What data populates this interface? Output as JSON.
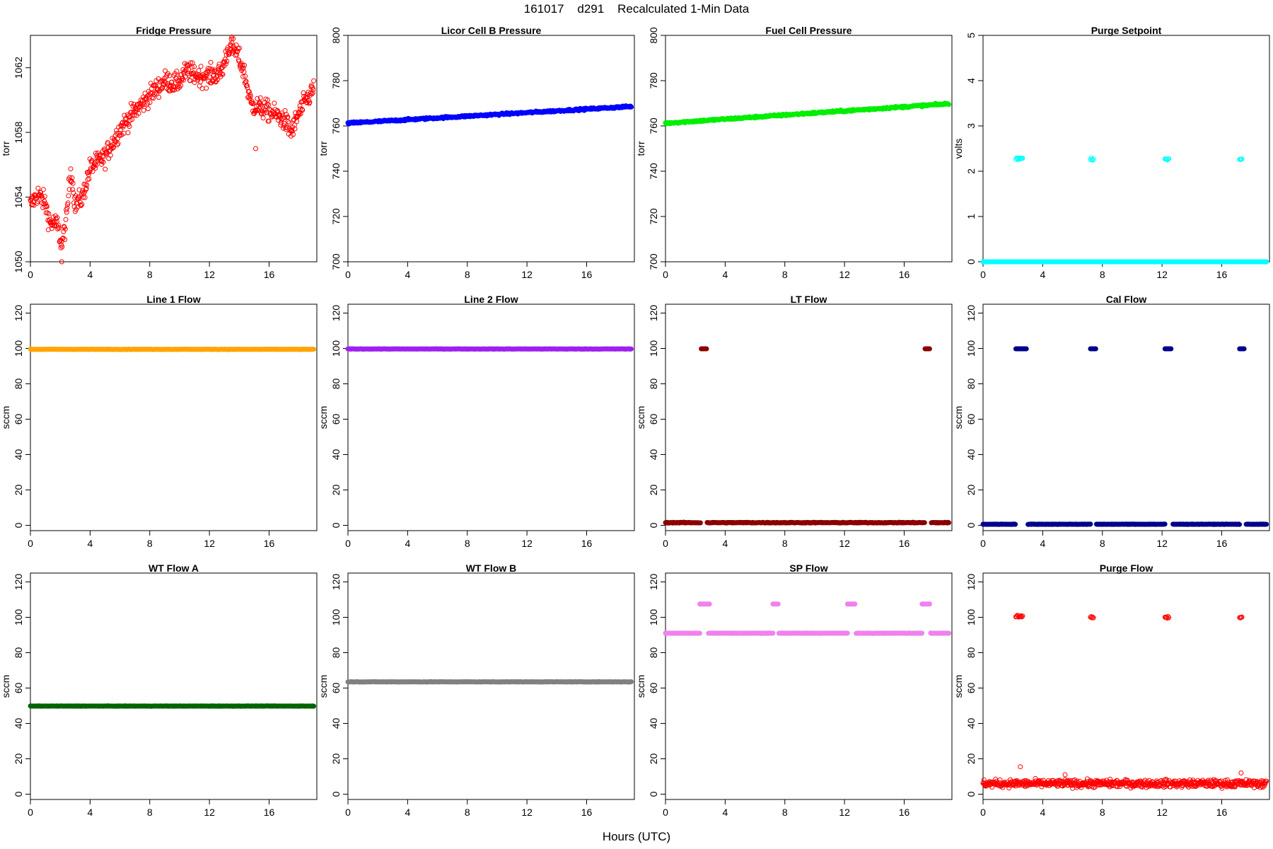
{
  "figure": {
    "title": "161017    d291    Recalculated 1-Min Data",
    "xlabel": "Hours (UTC)"
  },
  "chart_data": [
    {
      "type": "scatter",
      "title": "Fridge Pressure",
      "ylabel": "torr",
      "xlim": [
        0,
        19.2
      ],
      "ylim": [
        1050,
        1064
      ],
      "xticks": [
        0,
        4,
        8,
        12,
        16
      ],
      "yticks": [
        1050,
        1054,
        1058,
        1062
      ],
      "color": "#ff0000",
      "marker": "open-circle",
      "trace": [
        [
          0,
          1053.5
        ],
        [
          0.5,
          1054.2
        ],
        [
          1,
          1053.6
        ],
        [
          1.3,
          1052.4
        ],
        [
          1.8,
          1052.3
        ],
        [
          2.1,
          1051.0
        ],
        [
          2.4,
          1052.5
        ],
        [
          2.7,
          1055.8
        ],
        [
          3,
          1053.5
        ],
        [
          3.5,
          1054.0
        ],
        [
          4,
          1055.8
        ],
        [
          5,
          1056.5
        ],
        [
          6,
          1058.2
        ],
        [
          7,
          1059.3
        ],
        [
          8,
          1060.3
        ],
        [
          9,
          1061.2
        ],
        [
          9.8,
          1061.0
        ],
        [
          10.5,
          1061.8
        ],
        [
          11.2,
          1061.5
        ],
        [
          12,
          1061.5
        ],
        [
          12.8,
          1061.7
        ],
        [
          13.3,
          1063.3
        ],
        [
          13.8,
          1063.0
        ],
        [
          14.3,
          1061.8
        ],
        [
          14.8,
          1059.7
        ],
        [
          15.5,
          1059.5
        ],
        [
          16,
          1059.3
        ],
        [
          17,
          1058.8
        ],
        [
          17.5,
          1058.0
        ],
        [
          18,
          1059.2
        ],
        [
          18.5,
          1060.0
        ],
        [
          19,
          1060.7
        ]
      ],
      "noise": 0.6,
      "spikes": [
        [
          15.1,
          1057.0
        ],
        [
          2.1,
          1050.0
        ],
        [
          13.5,
          1063.9
        ]
      ]
    },
    {
      "type": "scatter",
      "title": "Licor Cell B Pressure",
      "ylabel": "torr",
      "xlim": [
        0,
        19.2
      ],
      "ylim": [
        700,
        800
      ],
      "xticks": [
        0,
        4,
        8,
        12,
        16
      ],
      "yticks": [
        700,
        720,
        740,
        760,
        780,
        800
      ],
      "color": "#0000ff",
      "marker": "filled-circle",
      "trace": [
        [
          0,
          761.2
        ],
        [
          19,
          768.6
        ]
      ],
      "noise": 0.4
    },
    {
      "type": "scatter",
      "title": "Fuel Cell Pressure",
      "ylabel": "torr",
      "xlim": [
        0,
        19.2
      ],
      "ylim": [
        700,
        800
      ],
      "xticks": [
        0,
        4,
        8,
        12,
        16
      ],
      "yticks": [
        700,
        720,
        740,
        760,
        780,
        800
      ],
      "color": "#00ee00",
      "marker": "filled-circle",
      "trace": [
        [
          0,
          761.2
        ],
        [
          19,
          769.8
        ]
      ],
      "noise": 0.4
    },
    {
      "type": "scatter",
      "title": "Purge Setpoint",
      "ylabel": "volts",
      "xlim": [
        0,
        19.2
      ],
      "ylim": [
        0,
        5
      ],
      "xticks": [
        0,
        4,
        8,
        12,
        16
      ],
      "yticks": [
        0,
        1,
        2,
        3,
        4,
        5
      ],
      "color": "#00ffff",
      "marker": "filled-circle",
      "trace": [
        [
          0,
          0
        ],
        [
          19,
          0
        ]
      ],
      "noise": 0,
      "bursts": [
        {
          "x0": 2.2,
          "x1": 2.65,
          "y": 2.28
        },
        {
          "x0": 7.2,
          "x1": 7.4,
          "y": 2.27
        },
        {
          "x0": 12.2,
          "x1": 12.5,
          "y": 2.27
        },
        {
          "x0": 17.2,
          "x1": 17.4,
          "y": 2.27
        }
      ],
      "burst_marker": "open-circle"
    },
    {
      "type": "scatter",
      "title": "Line 1 Flow",
      "ylabel": "sccm",
      "xlim": [
        0,
        19.2
      ],
      "ylim": [
        -3,
        125
      ],
      "xticks": [
        0,
        4,
        8,
        12,
        16
      ],
      "yticks": [
        0,
        20,
        40,
        60,
        80,
        100,
        120
      ],
      "color": "#ffa500",
      "marker": "filled-circle",
      "trace": [
        [
          0,
          99.5
        ],
        [
          19,
          99.5
        ]
      ],
      "noise": 0.1
    },
    {
      "type": "scatter",
      "title": "Line 2 Flow",
      "ylabel": "sccm",
      "xlim": [
        0,
        19.2
      ],
      "ylim": [
        -3,
        125
      ],
      "xticks": [
        0,
        4,
        8,
        12,
        16
      ],
      "yticks": [
        0,
        20,
        40,
        60,
        80,
        100,
        120
      ],
      "color": "#a020f0",
      "marker": "filled-circle",
      "trace": [
        [
          0,
          99.7
        ],
        [
          19,
          99.7
        ]
      ],
      "noise": 0.1
    },
    {
      "type": "scatter",
      "title": "LT Flow",
      "ylabel": "sccm",
      "xlim": [
        0,
        19.2
      ],
      "ylim": [
        -3,
        125
      ],
      "xticks": [
        0,
        4,
        8,
        12,
        16
      ],
      "yticks": [
        0,
        20,
        40,
        60,
        80,
        100,
        120
      ],
      "color": "#8b0000",
      "marker": "filled-circle",
      "trace": [
        [
          0,
          1.5
        ],
        [
          19,
          1.5
        ]
      ],
      "noise": 0.2,
      "gaps": [
        [
          2.35,
          2.75
        ],
        [
          17.4,
          17.8
        ]
      ],
      "bursts": [
        {
          "x0": 2.4,
          "x1": 2.75,
          "y": 99.8
        },
        {
          "x0": 17.4,
          "x1": 17.75,
          "y": 99.8
        }
      ]
    },
    {
      "type": "scatter",
      "title": "Cal Flow",
      "ylabel": "sccm",
      "xlim": [
        0,
        19.2
      ],
      "ylim": [
        -3,
        125
      ],
      "xticks": [
        0,
        4,
        8,
        12,
        16
      ],
      "yticks": [
        0,
        20,
        40,
        60,
        80,
        100,
        120
      ],
      "color": "#00008b",
      "marker": "filled-circle",
      "trace": [
        [
          0,
          0.6
        ],
        [
          19,
          0.6
        ]
      ],
      "noise": 0.1,
      "gaps": [
        [
          2.2,
          3.0
        ],
        [
          7.2,
          7.6
        ],
        [
          12.2,
          12.7
        ],
        [
          17.2,
          17.6
        ]
      ],
      "bursts": [
        {
          "x0": 2.2,
          "x1": 2.9,
          "y": 99.8
        },
        {
          "x0": 7.2,
          "x1": 7.55,
          "y": 99.8
        },
        {
          "x0": 12.2,
          "x1": 12.65,
          "y": 99.8
        },
        {
          "x0": 17.2,
          "x1": 17.55,
          "y": 99.8
        }
      ]
    },
    {
      "type": "scatter",
      "title": "WT Flow A",
      "ylabel": "sccm",
      "xlim": [
        0,
        19.2
      ],
      "ylim": [
        -3,
        125
      ],
      "xticks": [
        0,
        4,
        8,
        12,
        16
      ],
      "yticks": [
        0,
        20,
        40,
        60,
        80,
        100,
        120
      ],
      "color": "#006400",
      "marker": "filled-circle",
      "trace": [
        [
          0,
          49.8
        ],
        [
          19,
          49.8
        ]
      ],
      "noise": 0.1
    },
    {
      "type": "scatter",
      "title": "WT Flow B",
      "ylabel": "sccm",
      "xlim": [
        0,
        19.2
      ],
      "ylim": [
        -3,
        125
      ],
      "xticks": [
        0,
        4,
        8,
        12,
        16
      ],
      "yticks": [
        0,
        20,
        40,
        60,
        80,
        100,
        120
      ],
      "color": "#808080",
      "marker": "filled-circle",
      "trace": [
        [
          0,
          63.5
        ],
        [
          19,
          63.5
        ]
      ],
      "noise": 0.1
    },
    {
      "type": "scatter",
      "title": "SP Flow",
      "ylabel": "sccm",
      "xlim": [
        0,
        19.2
      ],
      "ylim": [
        -3,
        125
      ],
      "xticks": [
        0,
        4,
        8,
        12,
        16
      ],
      "yticks": [
        0,
        20,
        40,
        60,
        80,
        100,
        120
      ],
      "color": "#ee82ee",
      "marker": "filled-circle",
      "trace": [
        [
          0,
          91.0
        ],
        [
          19,
          91.0
        ]
      ],
      "noise": 0.1,
      "gaps": [
        [
          2.3,
          2.85
        ],
        [
          7.2,
          7.6
        ],
        [
          12.2,
          12.75
        ],
        [
          17.2,
          17.75
        ]
      ],
      "bursts": [
        {
          "x0": 2.3,
          "x1": 2.95,
          "y": 107.5
        },
        {
          "x0": 7.2,
          "x1": 7.55,
          "y": 107.5
        },
        {
          "x0": 12.2,
          "x1": 12.75,
          "y": 107.5
        },
        {
          "x0": 17.2,
          "x1": 17.75,
          "y": 107.5
        }
      ]
    },
    {
      "type": "scatter",
      "title": "Purge Flow",
      "ylabel": "sccm",
      "xlim": [
        0,
        19.2
      ],
      "ylim": [
        -3,
        125
      ],
      "xticks": [
        0,
        4,
        8,
        12,
        16
      ],
      "yticks": [
        0,
        20,
        40,
        60,
        80,
        100,
        120
      ],
      "color": "#ff0000",
      "marker": "open-circle",
      "trace": [
        [
          0,
          6
        ],
        [
          19,
          6
        ]
      ],
      "noise": 2.0,
      "spikes": [
        [
          2.5,
          15.5
        ],
        [
          17.3,
          12.0
        ],
        [
          5.5,
          11.0
        ]
      ],
      "bursts": [
        {
          "x0": 2.2,
          "x1": 2.65,
          "y": 100.5
        },
        {
          "x0": 7.2,
          "x1": 7.4,
          "y": 100
        },
        {
          "x0": 12.2,
          "x1": 12.5,
          "y": 100
        },
        {
          "x0": 17.2,
          "x1": 17.4,
          "y": 100
        }
      ]
    }
  ]
}
